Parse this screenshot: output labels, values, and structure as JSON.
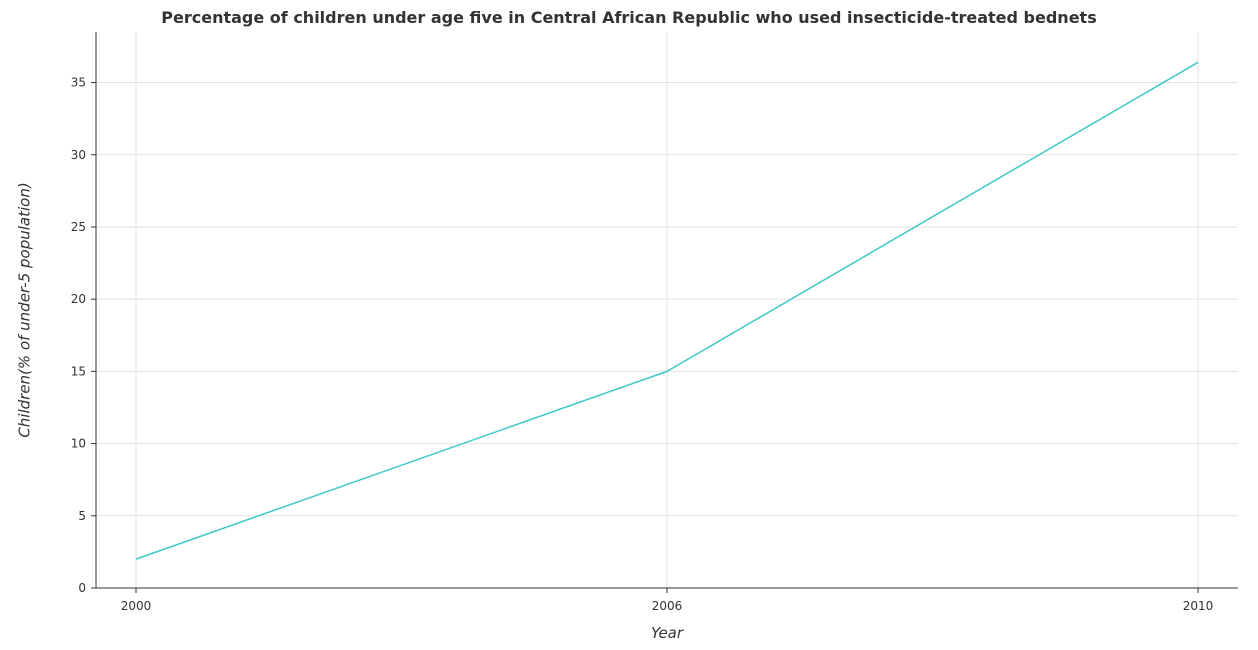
{
  "chart_data": {
    "type": "line",
    "title": "Percentage of children under age five in Central African Republic who used insecticide-treated bednets",
    "xlabel": "Year",
    "ylabel": "Children(% of under-5 population)",
    "x": [
      "2000",
      "2006",
      "2010"
    ],
    "series": [
      {
        "values": [
          2.0,
          15.0,
          36.4
        ],
        "color": "#3ec8c8"
      }
    ],
    "ylim": [
      0,
      38.5
    ],
    "yticks": [
      0,
      5,
      10,
      15,
      20,
      25,
      30,
      35
    ],
    "grid": true,
    "legend": "none"
  }
}
